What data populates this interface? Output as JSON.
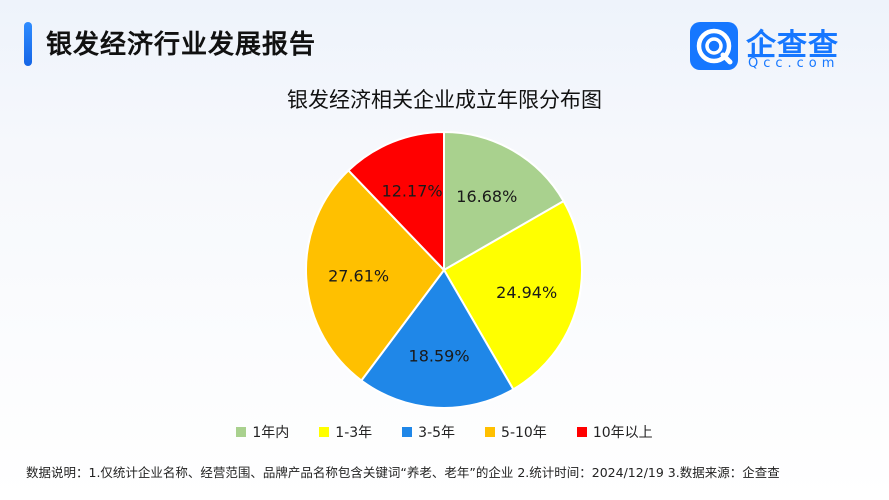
{
  "header": {
    "title": "银发经济行业发展报告"
  },
  "logo": {
    "name": "企查查",
    "sub": "Qcc.com",
    "brand_color": "#1677ff"
  },
  "chart_data": {
    "type": "pie",
    "title": "银发经济相关企业成立年限分布图",
    "categories": [
      "1年内",
      "1-3年",
      "3-5年",
      "5-10年",
      "10年以上"
    ],
    "values": [
      16.68,
      24.94,
      18.59,
      27.61,
      12.17
    ],
    "value_labels": [
      "16.68%",
      "24.94%",
      "18.59%",
      "27.61%",
      "12.17%"
    ],
    "colors": [
      "#a9d18e",
      "#ffff00",
      "#1f87e8",
      "#ffc000",
      "#ff0000"
    ],
    "start_angle_deg": 0,
    "direction": "clockwise",
    "legend_position": "bottom"
  },
  "footer": {
    "note": "数据说明：1.仅统计企业名称、经营范围、品牌产品名称包含关键词“养老、老年”的企业 2.统计时间：2024/12/19 3.数据来源：企查查"
  }
}
